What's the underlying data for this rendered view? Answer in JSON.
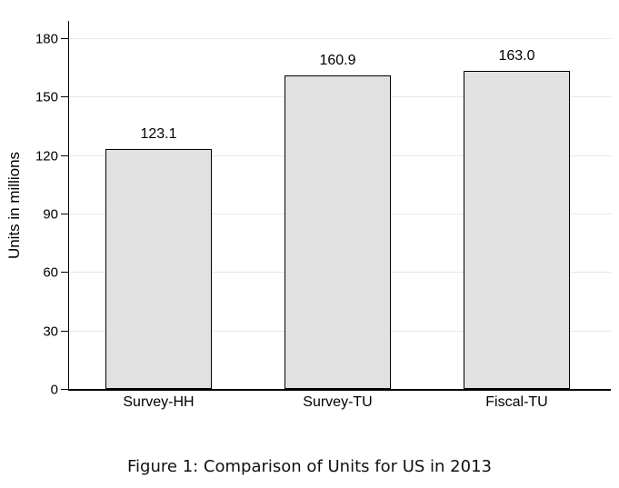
{
  "figure": {
    "caption": "Figure 1: Comparison of Units for US in 2013"
  },
  "chart_data": {
    "type": "bar",
    "title": "",
    "categories": [
      "Survey-HH",
      "Survey-TU",
      "Fiscal-TU"
    ],
    "values": [
      123.1,
      160.9,
      163.0
    ],
    "value_labels": [
      "123.1",
      "160.9",
      "163.0"
    ],
    "xlabel": "",
    "ylabel": "Units in millions",
    "yticks": [
      0,
      30,
      60,
      90,
      120,
      150,
      180
    ],
    "ylim": [
      0,
      188
    ],
    "grid": "horizontal-light",
    "legend": "none",
    "colors": {
      "bar_fill": "#e1e1e1",
      "bar_border": "#000000",
      "gridline": "#e7e7e7",
      "axis": "#000000",
      "text": "#000000",
      "background": "#ffffff"
    }
  }
}
